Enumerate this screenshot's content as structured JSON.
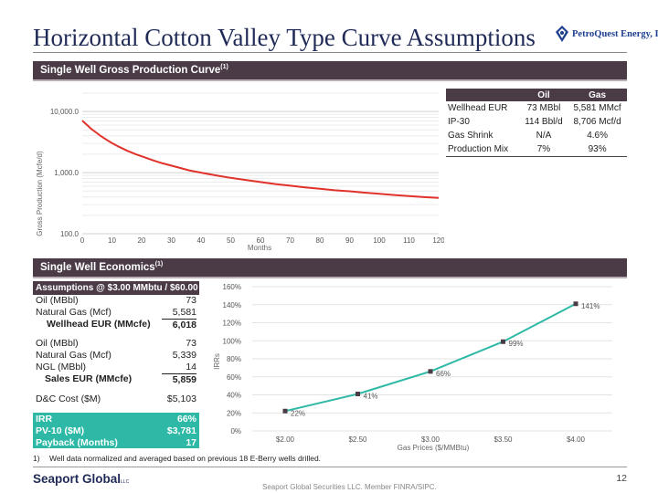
{
  "title": "Horizontal Cotton Valley Type Curve Assumptions",
  "logo": {
    "text": "PetroQuest Energy, Inc."
  },
  "sections": {
    "production": "Single Well Gross Production Curve",
    "economics": "Single Well Economics",
    "footnote_mark": "(1)"
  },
  "eur_table": {
    "headers": [
      "",
      "Oil",
      "Gas"
    ],
    "rows": [
      [
        "Wellhead EUR",
        "73 MBbl",
        "5,581 MMcf"
      ],
      [
        "IP-30",
        "114 Bbl/d",
        "8,706 Mcf/d"
      ],
      [
        "Gas Shrink",
        "N/A",
        "4.6%"
      ],
      [
        "Production Mix",
        "7%",
        "93%"
      ]
    ]
  },
  "economics_table": {
    "header": "Assumptions @ $3.00 MMbtu / $60.00 Bbl",
    "rows_a": [
      {
        "label": "Oil (MBbl)",
        "value": "73"
      },
      {
        "label": "Natural Gas (Mcf)",
        "value": "5,581"
      }
    ],
    "subtotal_a": {
      "label": "Wellhead EUR (MMcfe)",
      "value": "6,018"
    },
    "rows_b": [
      {
        "label": "Oil (MBbl)",
        "value": "73"
      },
      {
        "label": "Natural Gas (Mcf)",
        "value": "5,339"
      },
      {
        "label": "NGL (MBbl)",
        "value": "14"
      }
    ],
    "subtotal_b": {
      "label": "Sales EUR (MMcfe)",
      "value": "5,859"
    },
    "capex": {
      "label": "D&C Cost ($M)",
      "value": "$5,103"
    },
    "highlights": [
      {
        "label": "IRR",
        "value": "66%"
      },
      {
        "label": "PV-10 ($M)",
        "value": "$3,781"
      },
      {
        "label": "Payback (Months)",
        "value": "17"
      }
    ]
  },
  "chart_data": [
    {
      "type": "line",
      "title": "Single Well Gross Production Curve",
      "xlabel": "Months",
      "ylabel": "Gross Production (Mcfe/d)",
      "yscale": "log",
      "ylim": [
        100,
        20000
      ],
      "xlim": [
        0,
        120
      ],
      "x_ticks": [
        "0",
        "10",
        "20",
        "30",
        "40",
        "50",
        "60",
        "70",
        "80",
        "90",
        "100",
        "110",
        "120"
      ],
      "y_ticks": [
        "100.0",
        "1,000.0",
        "10,000.0"
      ],
      "color": "#e0322a",
      "x": [
        0,
        1,
        2,
        3,
        4,
        5,
        6,
        8,
        10,
        12,
        15,
        18,
        21,
        24,
        27,
        30,
        33,
        36,
        40,
        45,
        50,
        55,
        60,
        65,
        70,
        75,
        80,
        85,
        90,
        95,
        100,
        105,
        110,
        115,
        120
      ],
      "y": [
        7100,
        6400,
        5800,
        5200,
        4800,
        4400,
        4050,
        3500,
        3050,
        2700,
        2300,
        2000,
        1780,
        1580,
        1420,
        1300,
        1190,
        1090,
        1000,
        900,
        820,
        760,
        700,
        650,
        610,
        575,
        545,
        515,
        495,
        470,
        450,
        430,
        412,
        398,
        385
      ]
    },
    {
      "type": "line",
      "xlabel": "Gas Prices ($/MMBtu)",
      "ylabel": "IRRs",
      "categories": [
        "$2.00",
        "$2.50",
        "$3.00",
        "$3.50",
        "$4.00"
      ],
      "values": [
        22,
        41,
        66,
        99,
        141
      ],
      "data_labels": [
        "22%",
        "41%",
        "66%",
        "99%",
        "141%"
      ],
      "y_ticks": [
        "0%",
        "20%",
        "40%",
        "60%",
        "80%",
        "100%",
        "120%",
        "140%",
        "160%"
      ],
      "ylim": [
        0,
        160
      ],
      "line_color": "#2db9a6",
      "marker_color": "#4a3b46"
    }
  ],
  "footnote": {
    "number": "1)",
    "text": "Well data normalized and averaged based on previous 18 E-Berry wells drilled."
  },
  "footer": {
    "brand": "Seaport Global",
    "brand_mark": "LLC",
    "page_number": "12",
    "disclaimer": "Seaport Global Securities LLC. Member FINRA/SIPC."
  }
}
